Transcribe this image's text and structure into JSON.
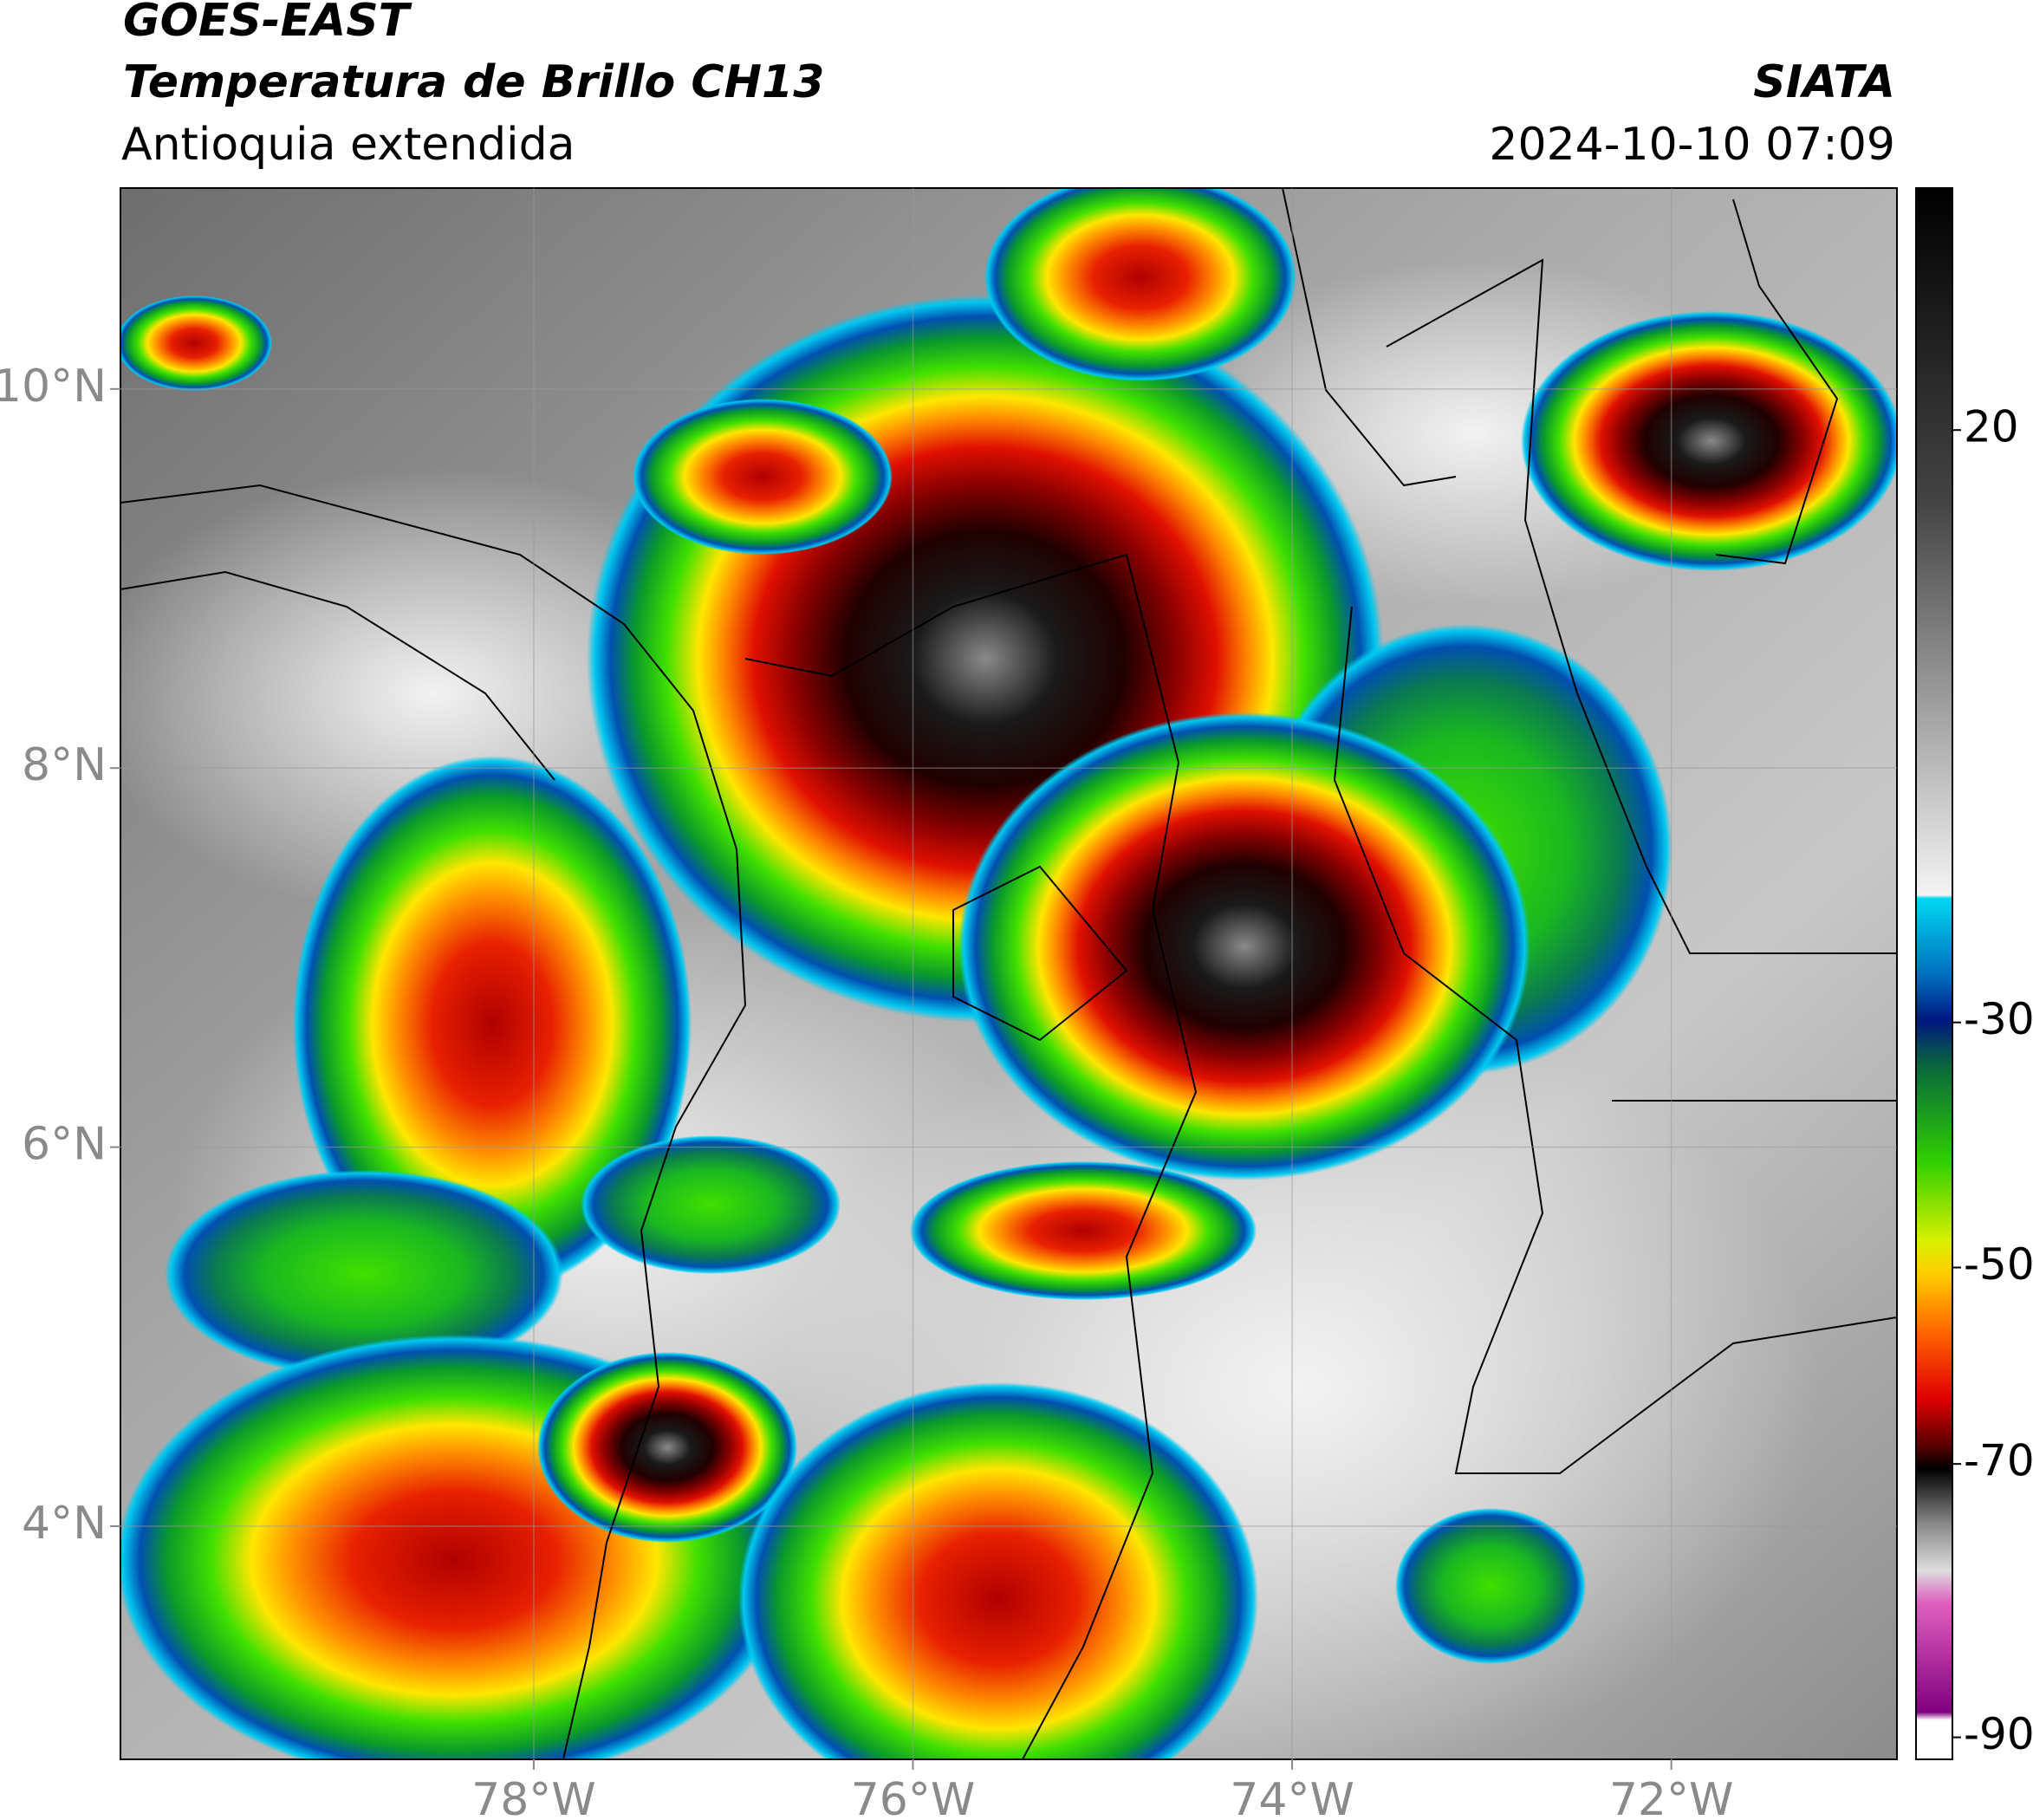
{
  "header": {
    "title": "GOES-EAST",
    "subtitle": "Temperatura de Brillo CH13",
    "region": "Antioquia extendida",
    "source": "SIATA",
    "datetime": "2024-10-10 07:09"
  },
  "map": {
    "lon_range": [
      -80.18,
      -70.81
    ],
    "lat_range": [
      2.77,
      11.06
    ],
    "lon_ticks": [
      {
        "value": -78,
        "label": "78°W"
      },
      {
        "value": -76,
        "label": "76°W"
      },
      {
        "value": -74,
        "label": "74°W"
      },
      {
        "value": -72,
        "label": "72°W"
      }
    ],
    "lat_ticks": [
      {
        "value": 10,
        "label": "10°N"
      },
      {
        "value": 8,
        "label": "8°N"
      },
      {
        "value": 6,
        "label": "6°N"
      },
      {
        "value": 4,
        "label": "4°N"
      }
    ]
  },
  "colorbar": {
    "ticks": [
      20,
      -30,
      -50,
      -70,
      -90
    ]
  }
}
